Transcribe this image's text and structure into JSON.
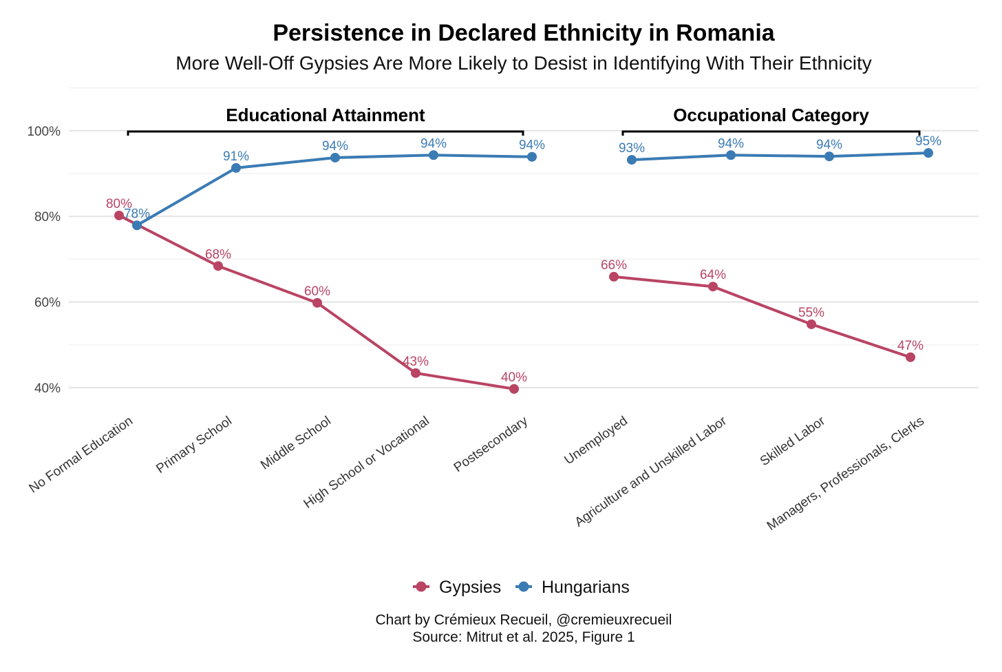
{
  "chart_data": {
    "type": "line",
    "title": "Persistence in Declared Ethnicity in Romania",
    "subtitle": "More Well-Off Gypsies Are More Likely to Desist in Identifying With Their Ethnicity",
    "xlabel": "",
    "ylabel": "",
    "ylim": [
      40,
      100
    ],
    "yticks": [
      "40%",
      "60%",
      "80%",
      "100%"
    ],
    "ytick_values": [
      40,
      60,
      80,
      100
    ],
    "grid": true,
    "legend_position": "bottom",
    "panels": [
      {
        "title": "Educational Attainment",
        "categories": [
          "No Formal Education",
          "Primary School",
          "Middle School",
          "High School or Vocational",
          "Postsecondary"
        ],
        "series": [
          {
            "name": "Gypsies",
            "values": [
              80.2,
              68.4,
              59.8,
              43.4,
              39.7
            ],
            "labels": [
              "80%",
              "68%",
              "60%",
              "43%",
              "40%"
            ]
          },
          {
            "name": "Hungarians",
            "values": [
              77.9,
              91.3,
              93.7,
              94.3,
              93.9
            ],
            "labels": [
              "78%",
              "91%",
              "94%",
              "94%",
              "94%"
            ]
          }
        ]
      },
      {
        "title": "Occupational Category",
        "categories": [
          "Unemployed",
          "Agriculture and Unskilled Labor",
          "Skilled Labor",
          "Managers, Professionals, Clerks"
        ],
        "series": [
          {
            "name": "Gypsies",
            "values": [
              65.9,
              63.6,
              54.8,
              47.1
            ],
            "labels": [
              "66%",
              "64%",
              "55%",
              "47%"
            ]
          },
          {
            "name": "Hungarians",
            "values": [
              93.2,
              94.3,
              94.0,
              94.8
            ],
            "labels": [
              "93%",
              "94%",
              "94%",
              "95%"
            ]
          }
        ]
      }
    ],
    "legend": [
      "Gypsies",
      "Hungarians"
    ],
    "colors": {
      "Gypsies": "#b94463",
      "Hungarians": "#3a7bb4"
    },
    "caption_line1": "Chart by Crémieux Recueil, @cremieuxrecueil",
    "caption_line2": "Source: Mitrut et al. 2025, Figure 1"
  }
}
